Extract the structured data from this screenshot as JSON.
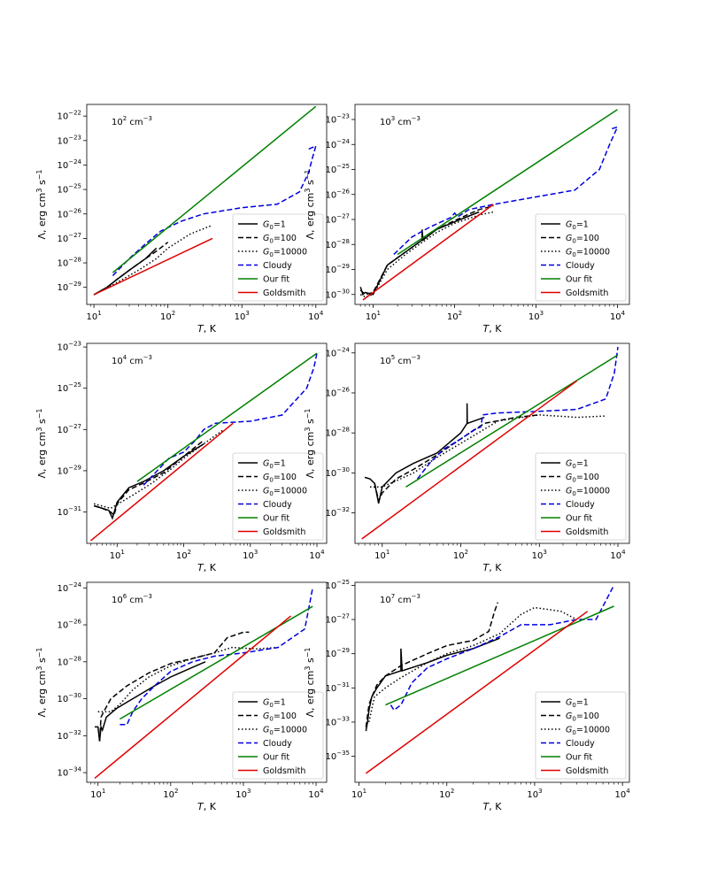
{
  "figure": {
    "style": {
      "colors": {
        "g1": "#000000",
        "g100": "#000000",
        "g10000": "#000000",
        "cloudy": "#0000dd",
        "fit": "#008000",
        "goldsmith": "#e00000"
      }
    },
    "legend_labels": {
      "g1": "G0=1",
      "g100": "G0=100",
      "g10000": "G0=10000",
      "cloudy": "Cloudy",
      "fit": "Our fit",
      "goldsmith": "Goldsmith"
    },
    "xlabel": "T, K",
    "ylabel": "Λ, erg cm3 s−1"
  },
  "chart_data": [
    {
      "type": "line",
      "title": "10² cm⁻³",
      "density_exp": "2",
      "xlabel": "T, K",
      "ylabel": "Λ, erg cm3 s−1",
      "xscale": "log",
      "yscale": "log",
      "xlim": [
        8,
        14000
      ],
      "ylim": [
        2e-30,
        3e-22
      ],
      "xticks": [
        10,
        100,
        1000,
        10000
      ],
      "yticks": [
        1e-29,
        1e-28,
        1e-27,
        1e-26,
        1e-25,
        1e-24,
        1e-23,
        1e-22
      ],
      "legend": "lower-right",
      "series": [
        {
          "name": "G0=1",
          "style": "solid",
          "x": [
            10,
            15,
            20,
            30,
            50,
            70
          ],
          "y": [
            5e-30,
            1e-29,
            2e-29,
            5e-29,
            1.5e-28,
            4e-28
          ]
        },
        {
          "name": "G0=100",
          "style": "dashed",
          "x": [
            10,
            15,
            20,
            30,
            50,
            70,
            100
          ],
          "y": [
            5e-30,
            1e-29,
            2e-29,
            5e-29,
            1.5e-28,
            3e-28,
            7e-28
          ]
        },
        {
          "name": "G0=10000",
          "style": "dotted",
          "x": [
            10,
            20,
            40,
            70,
            100,
            200,
            400
          ],
          "y": [
            5e-30,
            1.5e-29,
            5e-29,
            1.5e-28,
            4e-28,
            1.5e-27,
            3.5e-27
          ]
        },
        {
          "name": "Cloudy",
          "style": "dashed-blue",
          "x": [
            18,
            30,
            50,
            80,
            150,
            300,
            1000,
            3000,
            6000,
            8000,
            9000,
            10000,
            8000
          ],
          "y": [
            3e-29,
            1.5e-28,
            6e-28,
            2e-27,
            5e-27,
            1e-26,
            1.8e-26,
            2.5e-26,
            8e-26,
            5e-25,
            2e-24,
            6e-24,
            4.5e-24
          ]
        },
        {
          "name": "Our fit",
          "style": "solid-green",
          "x": [
            18,
            10000
          ],
          "y": [
            4e-29,
            2.5e-22
          ]
        },
        {
          "name": "Goldsmith",
          "style": "solid-red",
          "x": [
            10,
            400
          ],
          "y": [
            5e-30,
            1e-27
          ]
        }
      ]
    },
    {
      "type": "line",
      "title": "10³ cm⁻³",
      "density_exp": "3",
      "xlabel": "T, K",
      "ylabel": "Λ, erg cm3 s−1",
      "xscale": "log",
      "yscale": "log",
      "xlim": [
        6,
        14000
      ],
      "ylim": [
        4e-31,
        4e-23
      ],
      "xticks": [
        10,
        100,
        1000,
        10000
      ],
      "yticks": [
        1e-30,
        1e-29,
        1e-28,
        1e-27,
        1e-26,
        1e-25,
        1e-24,
        1e-23
      ],
      "legend": "lower-right",
      "series": [
        {
          "name": "G0=1",
          "style": "solid",
          "x": [
            7,
            7.5,
            8,
            10,
            15,
            25,
            40,
            40,
            41,
            60,
            100,
            200
          ],
          "y": [
            2e-30,
            1e-30,
            1.2e-30,
            1e-30,
            1.5e-29,
            5e-29,
            1.5e-28,
            4e-28,
            1.5e-28,
            4e-28,
            8e-28,
            2e-27
          ]
        },
        {
          "name": "G0=100",
          "style": "dashed",
          "x": [
            7,
            8,
            10,
            15,
            25,
            40,
            60,
            100,
            200,
            300
          ],
          "y": [
            1.5e-30,
            1e-30,
            1.2e-30,
            1.5e-29,
            5e-29,
            1.5e-28,
            4e-28,
            9e-28,
            2.5e-27,
            3.5e-27
          ]
        },
        {
          "name": "G0=10000",
          "style": "dotted",
          "x": [
            7,
            8,
            10,
            15,
            25,
            40,
            60,
            100,
            200,
            300
          ],
          "y": [
            1e-30,
            8e-31,
            1e-30,
            1e-29,
            4e-29,
            1.2e-28,
            3e-28,
            7e-28,
            1.5e-27,
            2e-27
          ]
        },
        {
          "name": "Cloudy",
          "style": "dashed-blue",
          "x": [
            18,
            30,
            50,
            90,
            100,
            110,
            150,
            300,
            1000,
            3000,
            6000,
            8000,
            10000,
            8000
          ],
          "y": [
            4e-29,
            2e-28,
            5e-28,
            1.2e-27,
            1.8e-27,
            1.3e-27,
            2.5e-27,
            4e-27,
            8e-27,
            1.5e-26,
            1e-25,
            1e-24,
            5e-24,
            4e-24
          ]
        },
        {
          "name": "Our fit",
          "style": "solid-green",
          "x": [
            20,
            10000
          ],
          "y": [
            4e-29,
            2.5e-23
          ]
        },
        {
          "name": "Goldsmith",
          "style": "solid-red",
          "x": [
            7.5,
            300
          ],
          "y": [
            6e-31,
            4e-27
          ]
        }
      ]
    },
    {
      "type": "line",
      "title": "10⁴ cm⁻³",
      "density_exp": "4",
      "xlabel": "T, K",
      "ylabel": "Λ, erg cm3 s−1",
      "xscale": "log",
      "yscale": "log",
      "xlim": [
        3.5,
        14000
      ],
      "ylim": [
        3e-33,
        1.5e-23
      ],
      "xticks": [
        10,
        100,
        1000,
        10000
      ],
      "yticks": [
        1e-31,
        1e-29,
        1e-27,
        1e-25,
        1e-23
      ],
      "legend": "lower-right",
      "series": [
        {
          "name": "G0=1",
          "style": "solid",
          "x": [
            4.5,
            6,
            7.5,
            8.5,
            10,
            15,
            25,
            50,
            100,
            200
          ],
          "y": [
            2e-31,
            1.5e-31,
            1.2e-31,
            5e-32,
            3e-31,
            1.5e-30,
            3e-30,
            1e-29,
            5e-29,
            2e-28
          ]
        },
        {
          "name": "G0=100",
          "style": "dashed",
          "x": [
            4.5,
            6,
            8,
            9,
            10,
            15,
            25,
            50,
            100,
            200
          ],
          "y": [
            2e-31,
            1.5e-31,
            1e-31,
            7e-32,
            2.5e-31,
            1.2e-30,
            2.5e-30,
            8e-30,
            5e-29,
            3e-28
          ]
        },
        {
          "name": "G0=10000",
          "style": "dotted",
          "x": [
            4.5,
            8,
            15,
            30,
            60,
            100,
            200,
            400
          ],
          "y": [
            2.5e-31,
            1.5e-31,
            5e-31,
            2e-30,
            1e-29,
            4e-29,
            2e-28,
            1e-27
          ]
        },
        {
          "name": "Cloudy",
          "style": "dashed-blue",
          "x": [
            25,
            40,
            60,
            100,
            150,
            200,
            300,
            1000,
            3000,
            7000,
            9000,
            10000
          ],
          "y": [
            2e-30,
            1e-29,
            4e-29,
            8e-29,
            3e-28,
            1e-27,
            2e-27,
            2.5e-27,
            5e-27,
            1e-25,
            1e-24,
            5e-24
          ]
        },
        {
          "name": "Our fit",
          "style": "solid-green",
          "x": [
            20,
            10000
          ],
          "y": [
            3e-30,
            5e-24
          ]
        },
        {
          "name": "Goldsmith",
          "style": "solid-red",
          "x": [
            4,
            550
          ],
          "y": [
            4e-33,
            2e-27
          ]
        }
      ]
    },
    {
      "type": "line",
      "title": "10⁵ cm⁻³",
      "density_exp": "5",
      "xlabel": "T, K",
      "ylabel": "Λ, erg cm3 s−1",
      "xscale": "log",
      "yscale": "log",
      "xlim": [
        4.5,
        14000
      ],
      "ylim": [
        3e-34,
        3e-24
      ],
      "xticks": [
        10,
        100,
        1000,
        10000
      ],
      "yticks": [
        1e-32,
        1e-30,
        1e-28,
        1e-26,
        1e-24
      ],
      "legend": "lower-right",
      "series": [
        {
          "name": "G0=1",
          "style": "solid",
          "x": [
            6,
            7,
            8,
            9,
            10,
            15,
            25,
            50,
            100,
            120,
            120,
            121,
            200
          ],
          "y": [
            6e-31,
            5e-31,
            3e-31,
            3e-32,
            2e-31,
            1e-30,
            3e-30,
            1e-29,
            1e-28,
            3e-28,
            3e-27,
            3e-28,
            6e-28
          ]
        },
        {
          "name": "G0=100",
          "style": "dashed",
          "x": [
            8,
            9,
            10,
            15,
            25,
            50,
            100,
            200,
            500,
            1000
          ],
          "y": [
            3e-31,
            4e-32,
            1e-31,
            5e-31,
            1.5e-30,
            8e-30,
            5e-29,
            3e-28,
            6e-28,
            8e-28
          ]
        },
        {
          "name": "G0=10000",
          "style": "dotted",
          "x": [
            7,
            10,
            15,
            25,
            50,
            100,
            300,
            1000,
            3000,
            7000
          ],
          "y": [
            2e-31,
            2e-31,
            4e-31,
            1e-30,
            6e-30,
            3e-29,
            4e-28,
            8e-28,
            6e-28,
            7e-28
          ]
        },
        {
          "name": "Cloudy",
          "style": "dashed-blue",
          "x": [
            28,
            40,
            60,
            100,
            150,
            180,
            190,
            300,
            1000,
            3000,
            7000,
            9000,
            10000
          ],
          "y": [
            5e-31,
            3e-30,
            1.5e-29,
            5e-29,
            1.5e-28,
            2e-28,
            8e-28,
            1e-27,
            1.2e-27,
            1.5e-27,
            5e-27,
            1e-25,
            2e-24
          ]
        },
        {
          "name": "Our fit",
          "style": "solid-green",
          "x": [
            20,
            10000
          ],
          "y": [
            2e-31,
            8e-25
          ]
        },
        {
          "name": "Goldsmith",
          "style": "solid-red",
          "x": [
            5.5,
            3000
          ],
          "y": [
            5e-34,
            4e-26
          ]
        }
      ]
    },
    {
      "type": "line",
      "title": "10⁶ cm⁻³",
      "density_exp": "6",
      "xlabel": "T, K",
      "ylabel": "Λ, erg cm3 s−1",
      "xscale": "log",
      "yscale": "log",
      "xlim": [
        7,
        14000
      ],
      "ylim": [
        3e-35,
        2e-24
      ],
      "xticks": [
        10,
        100,
        1000,
        10000
      ],
      "yticks": [
        1e-34,
        1e-32,
        1e-30,
        1e-28,
        1e-26,
        1e-24
      ],
      "legend": "lower-right",
      "series": [
        {
          "name": "G0=1",
          "style": "solid",
          "x": [
            9,
            10,
            10.5,
            11,
            11.5,
            13,
            18,
            30,
            60,
            100,
            200,
            300
          ],
          "y": [
            3e-32,
            3e-32,
            5e-33,
            3e-32,
            2e-32,
            1e-31,
            3e-31,
            1e-30,
            5e-30,
            1.5e-29,
            5e-29,
            1e-28
          ]
        },
        {
          "name": "G0=100",
          "style": "dashed",
          "x": [
            10.5,
            11,
            12,
            15,
            25,
            50,
            100,
            200,
            400,
            600,
            1000,
            1200
          ],
          "y": [
            5e-33,
            1e-31,
            2e-31,
            1e-30,
            5e-30,
            2.5e-29,
            8e-29,
            1.5e-28,
            3e-28,
            2e-27,
            4e-27,
            4e-27
          ]
        },
        {
          "name": "G0=10000",
          "style": "dotted",
          "x": [
            10,
            12,
            15,
            20,
            30,
            50,
            100,
            200,
            400,
            700,
            1500,
            3000
          ],
          "y": [
            2e-31,
            2e-31,
            2e-31,
            5e-31,
            3e-30,
            1.5e-29,
            6e-29,
            1.5e-28,
            3e-28,
            6e-28,
            5e-28,
            6e-28
          ]
        },
        {
          "name": "Cloudy",
          "style": "dashed-blue",
          "x": [
            20,
            25,
            30,
            40,
            60,
            100,
            200,
            400,
            1000,
            3000,
            7000,
            9000
          ],
          "y": [
            4e-32,
            4e-32,
            2e-31,
            1e-30,
            5e-30,
            3e-29,
            1e-28,
            2e-28,
            3e-28,
            6e-28,
            6e-27,
            1e-24
          ]
        },
        {
          "name": "Our fit",
          "style": "solid-green",
          "x": [
            20,
            9000
          ],
          "y": [
            8e-32,
            1e-25
          ]
        },
        {
          "name": "Goldsmith",
          "style": "solid-red",
          "x": [
            9,
            4500
          ],
          "y": [
            5e-35,
            3e-26
          ]
        }
      ]
    },
    {
      "type": "line",
      "title": "10⁷ cm⁻³",
      "density_exp": "7",
      "xlabel": "T, K",
      "ylabel": "Λ, erg cm3 s−1",
      "xscale": "log",
      "yscale": "log",
      "xlim": [
        9,
        12000
      ],
      "ylim": [
        3e-37,
        1.5e-25
      ],
      "xticks": [
        10,
        100,
        1000,
        10000
      ],
      "yticks": [
        1e-35,
        1e-33,
        1e-31,
        1e-29,
        1e-27,
        1e-25
      ],
      "legend": "lower-right",
      "series": [
        {
          "name": "G0=1",
          "style": "solid",
          "x": [
            12,
            12.5,
            13,
            14,
            16,
            20,
            30,
            30,
            31,
            60,
            100,
            200,
            400
          ],
          "y": [
            3e-34,
            1e-33,
            5e-33,
            3e-32,
            1e-31,
            5e-31,
            1e-30,
            2e-29,
            1e-30,
            3e-30,
            8e-30,
            2e-29,
            8e-29
          ]
        },
        {
          "name": "G0=100",
          "style": "dashed",
          "x": [
            12,
            13,
            14,
            16,
            20,
            30,
            60,
            100,
            200,
            300,
            350,
            380
          ],
          "y": [
            5e-34,
            1e-32,
            3e-32,
            1.5e-31,
            5e-31,
            2e-30,
            1e-29,
            3e-29,
            6e-29,
            2e-28,
            3e-27,
            1e-26
          ]
        },
        {
          "name": "G0=10000",
          "style": "dotted",
          "x": [
            13,
            15,
            20,
            30,
            60,
            100,
            200,
            400,
            700,
            1000,
            2000,
            3000
          ],
          "y": [
            1e-33,
            3e-32,
            1e-31,
            4e-31,
            3e-30,
            1e-29,
            3e-29,
            1.5e-28,
            2e-27,
            5e-27,
            3e-27,
            1e-27
          ]
        },
        {
          "name": "Cloudy",
          "style": "dashed-blue",
          "x": [
            23,
            25,
            30,
            40,
            60,
            100,
            200,
            400,
            700,
            1500,
            3000,
            5000,
            8000
          ],
          "y": [
            1e-32,
            5e-33,
            1e-32,
            2e-31,
            1.5e-30,
            5e-30,
            2e-29,
            1e-28,
            5e-28,
            5e-28,
            1e-27,
            1e-27,
            1e-25
          ]
        },
        {
          "name": "Our fit",
          "style": "solid-green",
          "x": [
            20,
            8000
          ],
          "y": [
            1e-32,
            6e-27
          ]
        },
        {
          "name": "Goldsmith",
          "style": "solid-red",
          "x": [
            12,
            4000
          ],
          "y": [
            1e-36,
            3e-27
          ]
        }
      ]
    }
  ]
}
